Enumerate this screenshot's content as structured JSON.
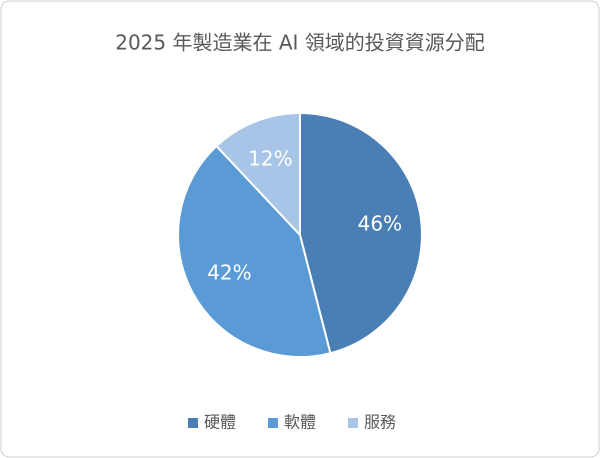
{
  "chart_data": {
    "type": "pie",
    "title": "2025 年製造業在 AI 領域的投資資源分配",
    "categories": [
      "硬體",
      "軟體",
      "服務"
    ],
    "values": [
      46,
      42,
      12
    ],
    "value_labels": [
      "46%",
      "42%",
      "12%"
    ],
    "colors": [
      "#4a7fb5",
      "#5b9bd5",
      "#a8c5e8"
    ],
    "legend": "bottom"
  }
}
